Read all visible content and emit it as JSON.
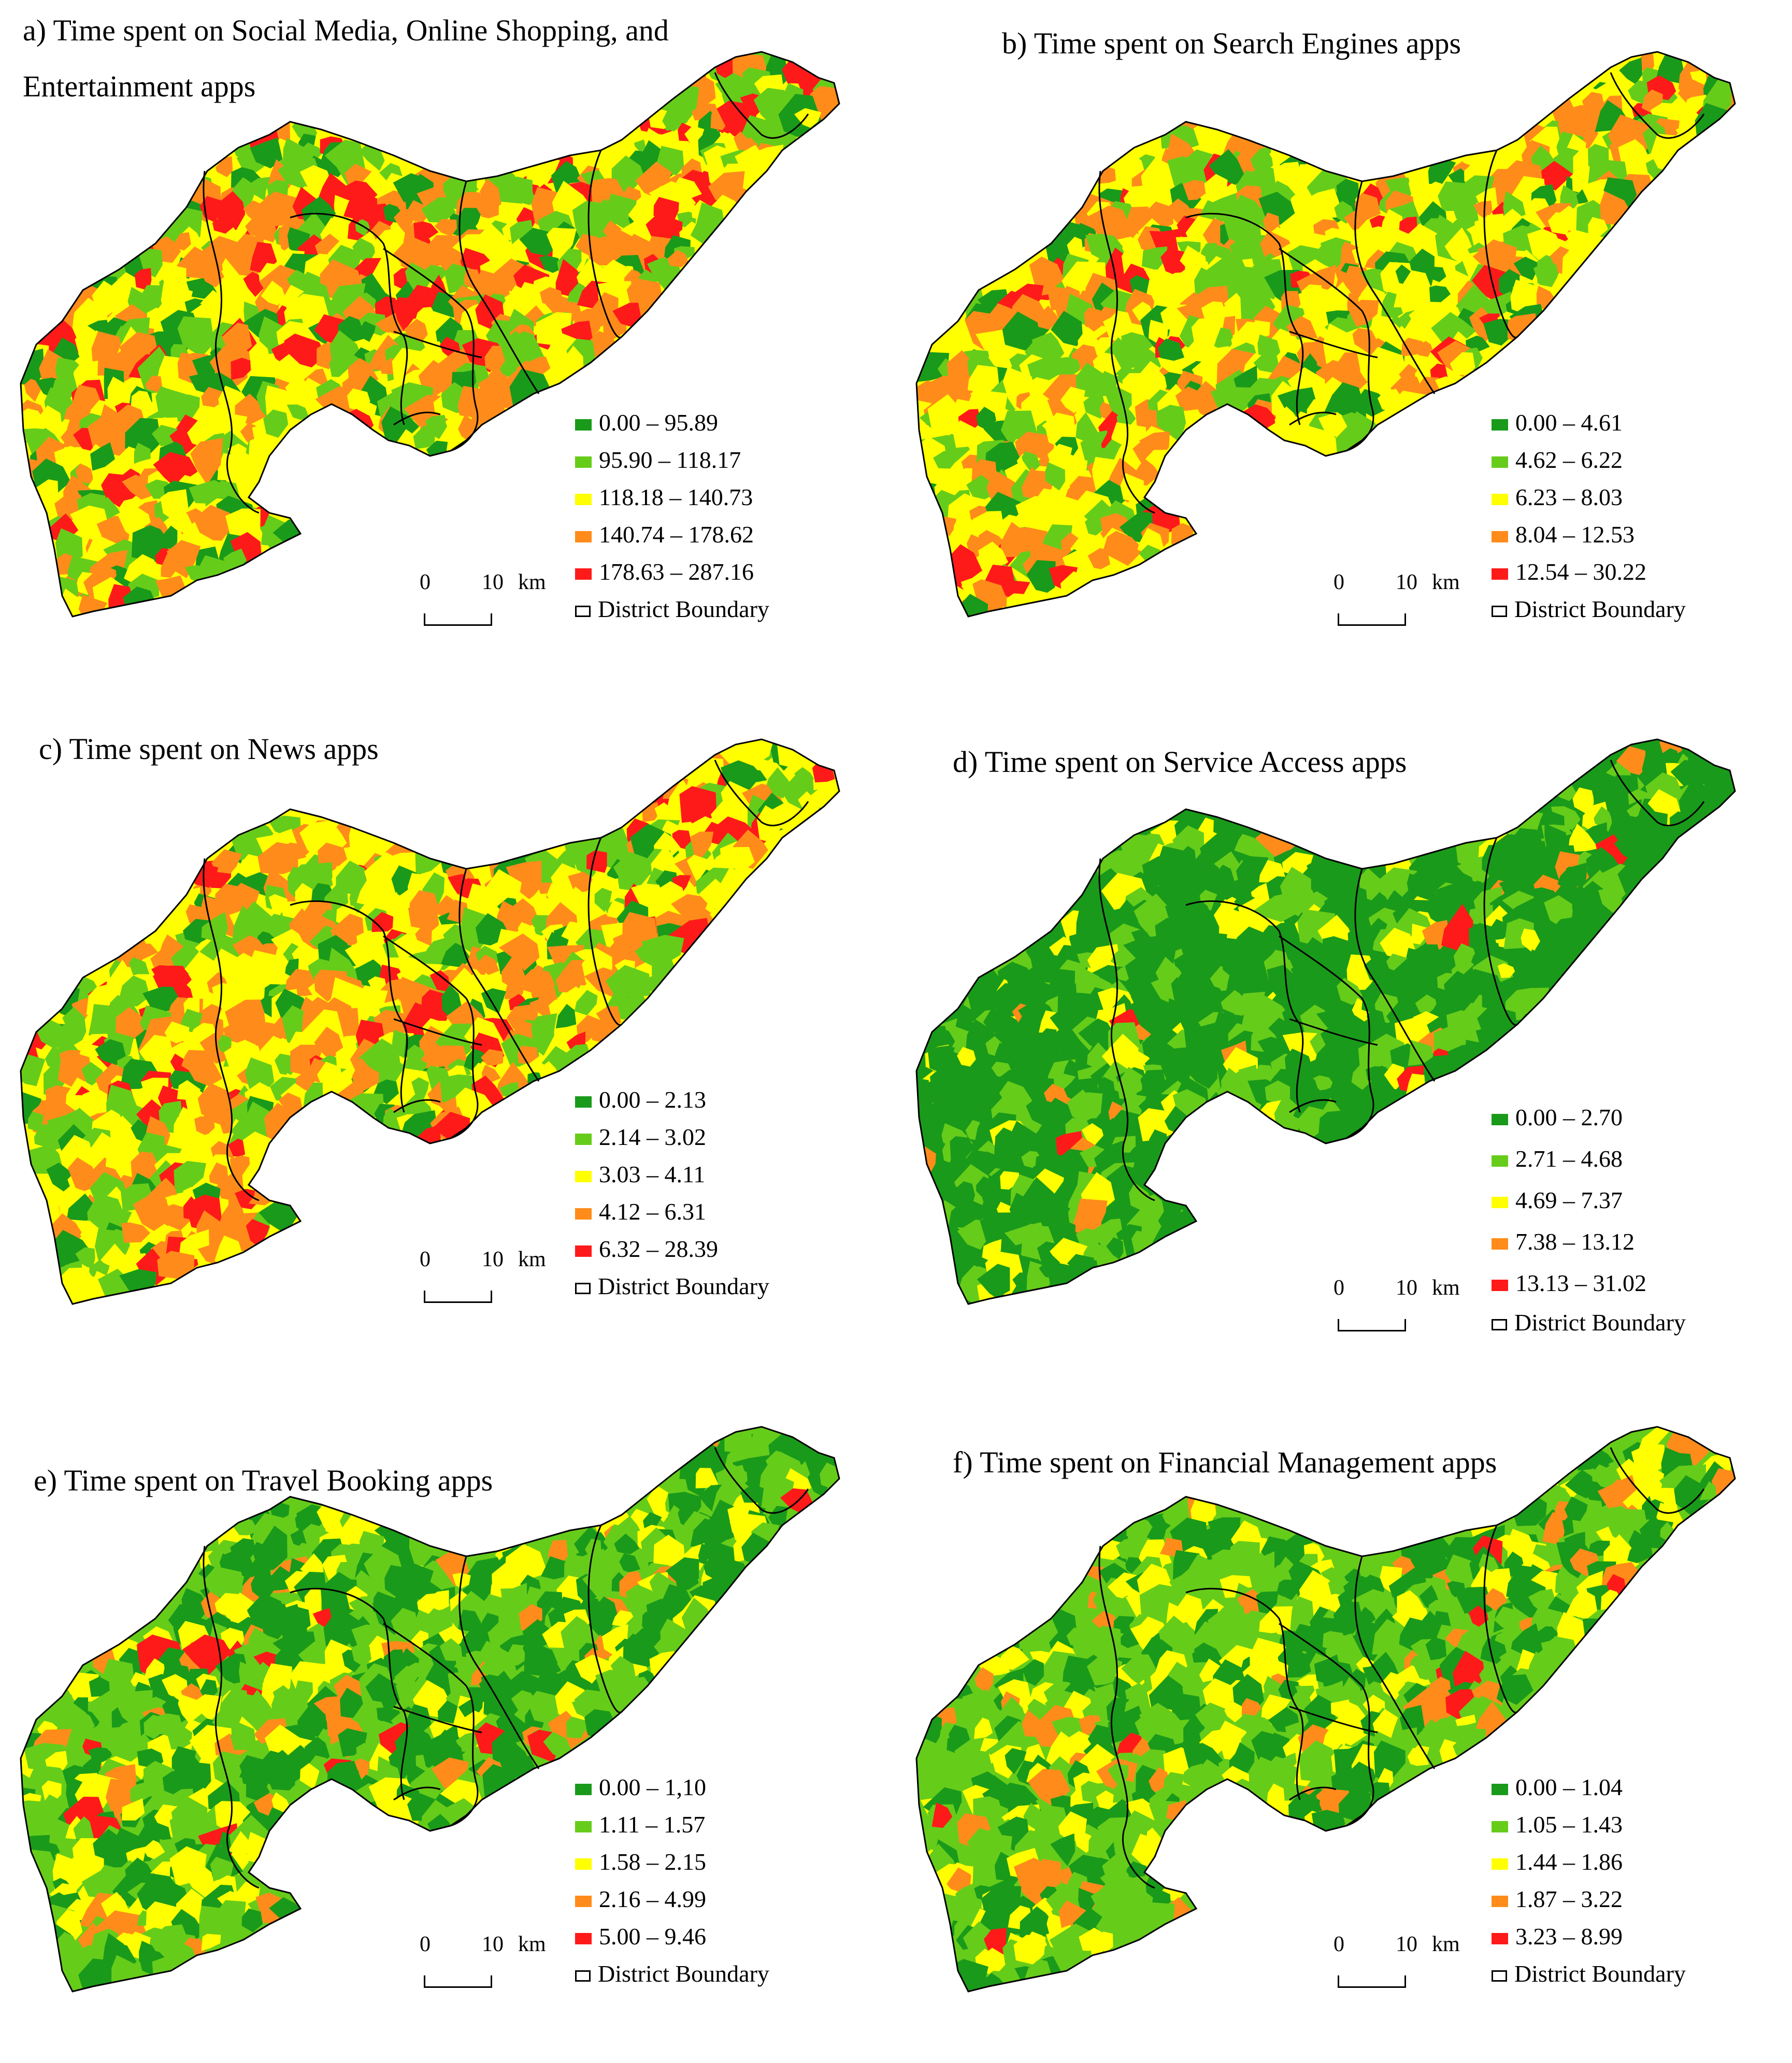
{
  "colors": {
    "class1": "#1a9a1a",
    "class2": "#66cc1a",
    "class3": "#ffff00",
    "class4": "#ff8c1a",
    "class5": "#ff1a1a",
    "boundary": "#000000"
  },
  "scale": {
    "zero": "0",
    "ten": "10",
    "unit": "km"
  },
  "boundary_label": "District Boundary",
  "panels": [
    {
      "title_line1": "a) Time spent on Social Media, Online Shopping, and",
      "title_line2": "Entertainment apps",
      "classes": [
        "0.00 – 95.89",
        "95.90 – 118.17",
        "118.18 – 140.73",
        "140.74 – 178.62",
        "178.63 – 287.16"
      ]
    },
    {
      "title_line1": "b) Time spent on Search Engines apps",
      "classes": [
        "0.00 – 4.61",
        "4.62 – 6.22",
        "6.23 – 8.03",
        "8.04 – 12.53",
        "12.54 – 30.22"
      ]
    },
    {
      "title_line1": "c) Time spent on News apps",
      "classes": [
        "0.00 – 2.13",
        "2.14 – 3.02",
        "3.03 – 4.11",
        "4.12 – 6.31",
        "6.32 – 28.39"
      ]
    },
    {
      "title_line1": "d) Time spent on Service Access apps",
      "classes": [
        "0.00 – 2.70",
        "2.71 – 4.68",
        "4.69 – 7.37",
        "7.38 – 13.12",
        "13.13 – 31.02"
      ]
    },
    {
      "title_line1": "e) Time spent on Travel Booking apps",
      "classes": [
        "0.00 – 1,10",
        "1.11 – 1.57",
        "1.58 – 2.15",
        "2.16 – 4.99",
        "5.00 – 9.46"
      ]
    },
    {
      "title_line1": "f) Time spent on Financial Management apps",
      "classes": [
        "0.00 – 1.04",
        "1.05 – 1.43",
        "1.44 – 1.86",
        "1.87 – 3.22",
        "3.23 – 8.99"
      ]
    }
  ]
}
